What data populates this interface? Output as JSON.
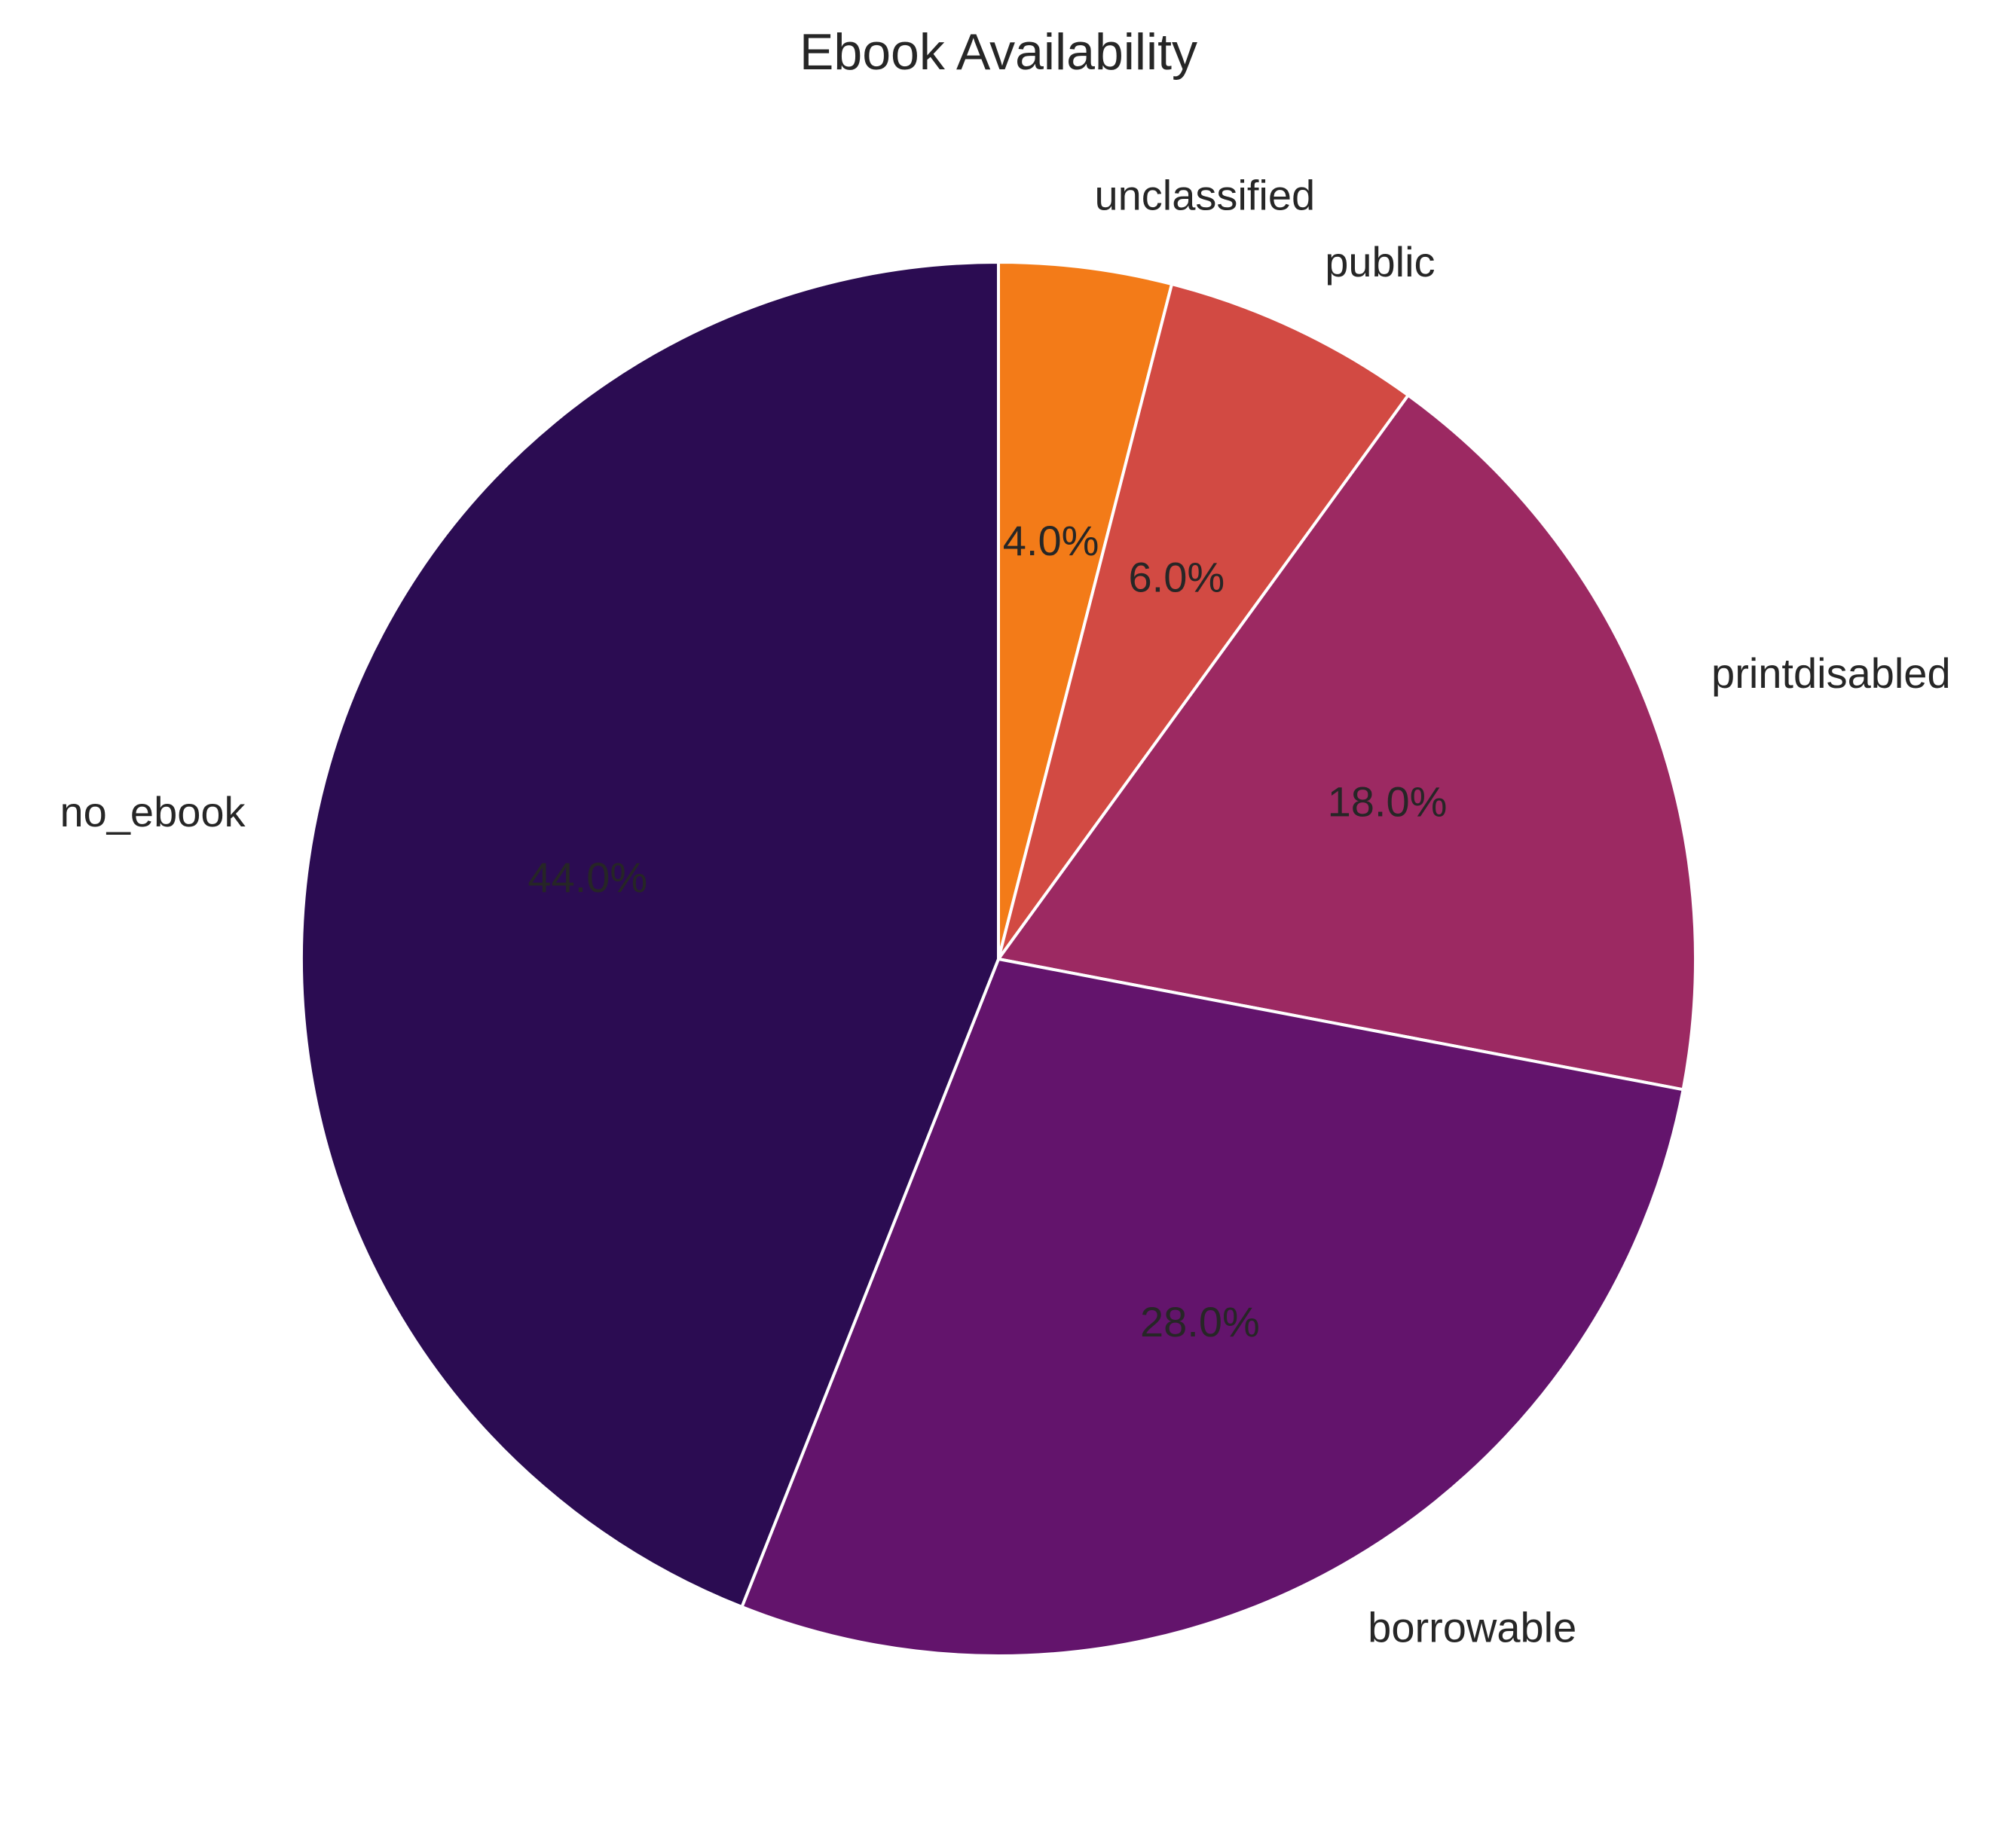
{
  "chart_data": {
    "type": "pie",
    "title": "Ebook Availability",
    "categories": [
      "unclassified",
      "public",
      "printdisabled",
      "borrowable",
      "no_ebook"
    ],
    "values": [
      4.0,
      6.0,
      18.0,
      28.0,
      44.0
    ],
    "labels": [
      "4.0%",
      "6.0%",
      "18.0%",
      "28.0%",
      "44.0%"
    ],
    "colors": [
      "#f37b18",
      "#d24a43",
      "#9c2962",
      "#63146c",
      "#2b0c52"
    ],
    "label_colors": [
      "#262626",
      "#262626",
      "#262626",
      "#262626",
      "#262626"
    ],
    "start_angle_deg": 90,
    "direction": "clockwise",
    "legend": "none"
  }
}
